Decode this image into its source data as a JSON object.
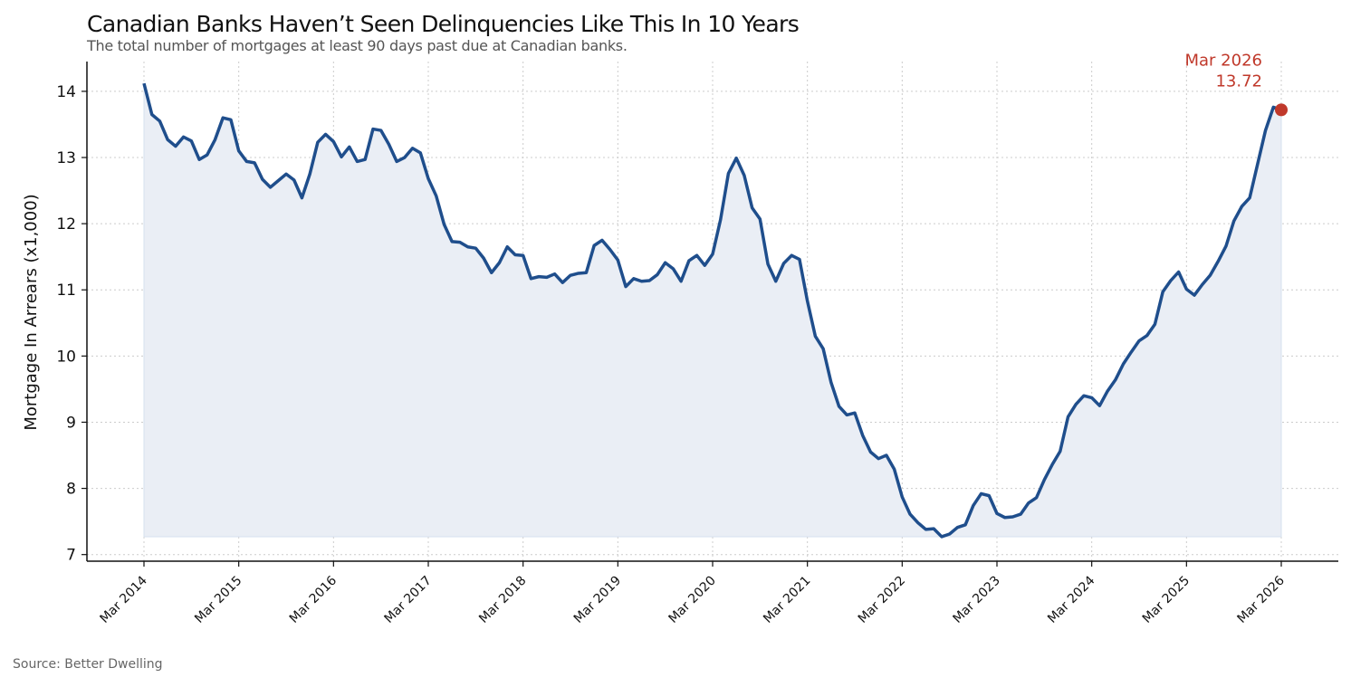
{
  "title": "Canadian Banks Haven’t Seen Delinquencies Like This In 10 Years",
  "subtitle": "The total number of mortgages at least 90 days past due at Canadian banks.",
  "source": "Source: Better Dwelling",
  "colors": {
    "line": "#1f4e8c",
    "fill": "#eaeef5",
    "annotation": "#c0392b",
    "grid": "#cccccc"
  },
  "chart_data": {
    "type": "area",
    "title": "Canadian Banks Haven’t Seen Delinquencies Like This In 10 Years",
    "ylabel": "Mortgage In Arrears (x1,000)",
    "xlabel": "",
    "ylim": [
      6.9,
      14.45
    ],
    "yticks": [
      7,
      8,
      9,
      10,
      11,
      12,
      13,
      14
    ],
    "xticks": [
      "Mar 2014",
      "Mar 2015",
      "Mar 2016",
      "Mar 2017",
      "Mar 2018",
      "Mar 2019",
      "Mar 2020",
      "Mar 2021",
      "Mar 2022",
      "Mar 2023",
      "Mar 2024",
      "Mar 2025",
      "Mar 2026"
    ],
    "x_start": "Mar 2014",
    "x_end": "Mar 2026",
    "grid": true,
    "annotation": {
      "label": "Mar 2026",
      "value": "13.72"
    },
    "values": [
      14.12,
      13.65,
      13.55,
      13.27,
      13.17,
      13.31,
      13.25,
      12.97,
      13.04,
      13.27,
      13.6,
      13.57,
      13.1,
      12.94,
      12.92,
      12.67,
      12.55,
      12.65,
      12.75,
      12.66,
      12.39,
      12.75,
      13.23,
      13.35,
      13.24,
      13.01,
      13.16,
      12.94,
      12.97,
      13.43,
      13.41,
      13.2,
      12.94,
      13.0,
      13.14,
      13.07,
      12.68,
      12.42,
      11.99,
      11.73,
      11.72,
      11.65,
      11.63,
      11.48,
      11.26,
      11.41,
      11.65,
      11.53,
      11.52,
      11.17,
      11.2,
      11.19,
      11.24,
      11.11,
      11.22,
      11.25,
      11.26,
      11.67,
      11.75,
      11.61,
      11.45,
      11.05,
      11.17,
      11.13,
      11.14,
      11.23,
      11.41,
      11.32,
      11.13,
      11.44,
      11.52,
      11.37,
      11.54,
      12.06,
      12.76,
      12.99,
      12.73,
      12.24,
      12.07,
      11.39,
      11.13,
      11.4,
      11.52,
      11.46,
      10.83,
      10.3,
      10.11,
      9.6,
      9.24,
      9.11,
      9.14,
      8.8,
      8.55,
      8.45,
      8.5,
      8.29,
      7.87,
      7.61,
      7.48,
      7.38,
      7.39,
      7.27,
      7.31,
      7.41,
      7.45,
      7.74,
      7.92,
      7.89,
      7.62,
      7.56,
      7.57,
      7.61,
      7.78,
      7.86,
      8.13,
      8.36,
      8.56,
      9.08,
      9.27,
      9.4,
      9.37,
      9.25,
      9.47,
      9.64,
      9.88,
      10.06,
      10.23,
      10.31,
      10.48,
      10.97,
      11.14,
      11.27,
      11.01,
      10.92,
      11.08,
      11.22,
      11.43,
      11.66,
      12.04,
      12.26,
      12.39,
      12.9,
      13.41,
      13.76,
      13.72
    ]
  }
}
